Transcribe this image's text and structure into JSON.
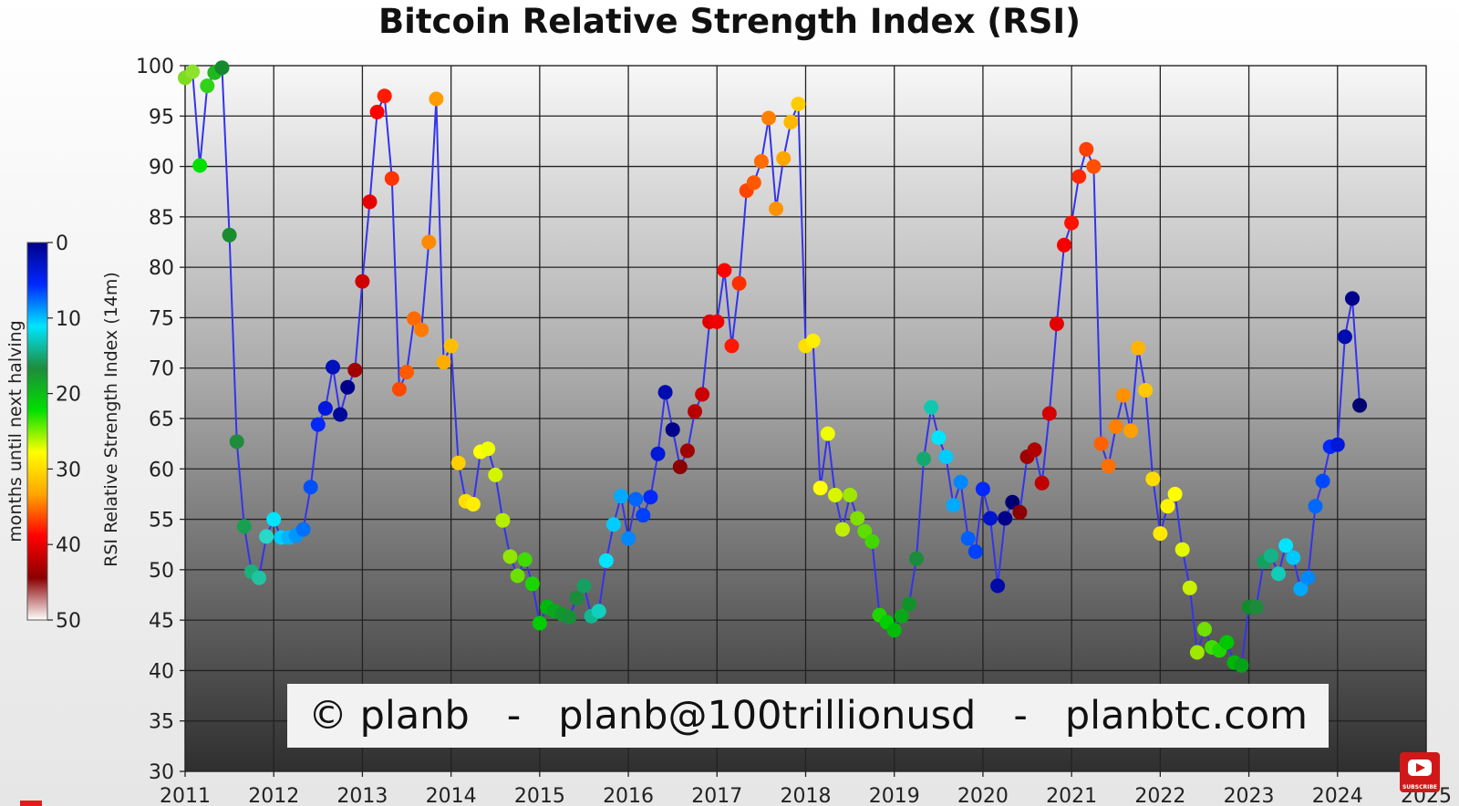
{
  "chart_data": {
    "type": "scatter",
    "title": "Bitcoin Relative Strength Index (RSI)",
    "ylabel": "RSI Relative Strength Index (14m)",
    "xlim": [
      2011,
      2025
    ],
    "ylim": [
      30,
      100
    ],
    "x_ticks": [
      "2011",
      "2012",
      "2013",
      "2014",
      "2015",
      "2016",
      "2017",
      "2018",
      "2019",
      "2020",
      "2021",
      "2022",
      "2023",
      "2024",
      "2025"
    ],
    "y_ticks": [
      "30",
      "35",
      "40",
      "45",
      "50",
      "55",
      "60",
      "65",
      "70",
      "75",
      "80",
      "85",
      "90",
      "95",
      "100"
    ],
    "grid": true,
    "colorbar": {
      "label": "months until next halving",
      "ticks": [
        "0",
        "10",
        "20",
        "30",
        "40",
        "50"
      ],
      "range": [
        0,
        50
      ],
      "colors": [
        "#00008b",
        "#0028ff",
        "#00e5ff",
        "#1e8c3c",
        "#00e000",
        "#ffff00",
        "#ffa500",
        "#ff0000",
        "#8b0000",
        "#ffffff"
      ]
    },
    "series": [
      {
        "line_color": "#3333ee",
        "points": [
          {
            "x": "2011-01",
            "y": 98.8,
            "color": "#7ddc1f"
          },
          {
            "x": "2011-02",
            "y": 99.4,
            "color": "#8ee22c"
          },
          {
            "x": "2011-03",
            "y": 90.1,
            "color": "#00e000"
          },
          {
            "x": "2011-04",
            "y": 98.0,
            "color": "#2fd418"
          },
          {
            "x": "2011-05",
            "y": 99.3,
            "color": "#1fb81f"
          },
          {
            "x": "2011-06",
            "y": 99.8,
            "color": "#138a2e"
          },
          {
            "x": "2011-07",
            "y": 83.2,
            "color": "#1a8c30"
          },
          {
            "x": "2011-08",
            "y": 62.7,
            "color": "#1e8c3c"
          },
          {
            "x": "2011-09",
            "y": 54.3,
            "color": "#17a050"
          },
          {
            "x": "2011-10",
            "y": 49.8,
            "color": "#1ab07a"
          },
          {
            "x": "2011-11",
            "y": 49.2,
            "color": "#20c4a0"
          },
          {
            "x": "2011-12",
            "y": 53.3,
            "color": "#28d8c8"
          },
          {
            "x": "2012-01",
            "y": 55.0,
            "color": "#00e5ff"
          },
          {
            "x": "2012-02",
            "y": 53.2,
            "color": "#00ccff"
          },
          {
            "x": "2012-03",
            "y": 53.2,
            "color": "#00b4ff"
          },
          {
            "x": "2012-04",
            "y": 53.4,
            "color": "#0096ff"
          },
          {
            "x": "2012-05",
            "y": 54.0,
            "color": "#0070ff"
          },
          {
            "x": "2012-06",
            "y": 58.2,
            "color": "#0050ff"
          },
          {
            "x": "2012-07",
            "y": 64.4,
            "color": "#0028ff"
          },
          {
            "x": "2012-08",
            "y": 66.0,
            "color": "#0018dd"
          },
          {
            "x": "2012-09",
            "y": 70.1,
            "color": "#0010bb"
          },
          {
            "x": "2012-10",
            "y": 65.4,
            "color": "#000a9a"
          },
          {
            "x": "2012-11",
            "y": 68.1,
            "color": "#00008b"
          },
          {
            "x": "2012-12",
            "y": 69.8,
            "color": "#a00000"
          },
          {
            "x": "2013-01",
            "y": 78.6,
            "color": "#d00000"
          },
          {
            "x": "2013-02",
            "y": 86.5,
            "color": "#e80000"
          },
          {
            "x": "2013-03",
            "y": 95.4,
            "color": "#ff0000"
          },
          {
            "x": "2013-04",
            "y": 97.0,
            "color": "#ff1a00"
          },
          {
            "x": "2013-05",
            "y": 88.8,
            "color": "#ff3300"
          },
          {
            "x": "2013-06",
            "y": 67.9,
            "color": "#ff4800"
          },
          {
            "x": "2013-07",
            "y": 69.6,
            "color": "#ff5a00"
          },
          {
            "x": "2013-08",
            "y": 74.9,
            "color": "#ff6a00"
          },
          {
            "x": "2013-09",
            "y": 73.8,
            "color": "#ff7a00"
          },
          {
            "x": "2013-10",
            "y": 82.5,
            "color": "#ff8a00"
          },
          {
            "x": "2013-11",
            "y": 96.7,
            "color": "#ff9c00"
          },
          {
            "x": "2013-12",
            "y": 70.6,
            "color": "#ffad00"
          },
          {
            "x": "2014-01",
            "y": 72.2,
            "color": "#ffbe00"
          },
          {
            "x": "2014-02",
            "y": 60.6,
            "color": "#ffcf00"
          },
          {
            "x": "2014-03",
            "y": 56.8,
            "color": "#ffdf00"
          },
          {
            "x": "2014-04",
            "y": 56.5,
            "color": "#ffee00"
          },
          {
            "x": "2014-05",
            "y": 61.7,
            "color": "#ffff00"
          },
          {
            "x": "2014-06",
            "y": 62.0,
            "color": "#eeff00"
          },
          {
            "x": "2014-07",
            "y": 59.4,
            "color": "#d4f500"
          },
          {
            "x": "2014-08",
            "y": 54.9,
            "color": "#b6ee00"
          },
          {
            "x": "2014-09",
            "y": 51.3,
            "color": "#90e600"
          },
          {
            "x": "2014-10",
            "y": 49.4,
            "color": "#6ce000"
          },
          {
            "x": "2014-11",
            "y": 51.0,
            "color": "#40dc00"
          },
          {
            "x": "2014-12",
            "y": 48.6,
            "color": "#1ad600"
          },
          {
            "x": "2015-01",
            "y": 44.7,
            "color": "#00cc00"
          },
          {
            "x": "2015-02",
            "y": 46.3,
            "color": "#00b810"
          },
          {
            "x": "2015-03",
            "y": 45.9,
            "color": "#08a820"
          },
          {
            "x": "2015-04",
            "y": 45.6,
            "color": "#10982c"
          },
          {
            "x": "2015-05",
            "y": 45.3,
            "color": "#169036"
          },
          {
            "x": "2015-06",
            "y": 47.2,
            "color": "#1a8c3c"
          },
          {
            "x": "2015-07",
            "y": 48.4,
            "color": "#14a060"
          },
          {
            "x": "2015-08",
            "y": 45.4,
            "color": "#10b890"
          },
          {
            "x": "2015-09",
            "y": 45.9,
            "color": "#10d0c0"
          },
          {
            "x": "2015-10",
            "y": 50.9,
            "color": "#00e5ff"
          },
          {
            "x": "2015-11",
            "y": 54.5,
            "color": "#00ccff"
          },
          {
            "x": "2015-12",
            "y": 57.3,
            "color": "#00aaff"
          },
          {
            "x": "2016-01",
            "y": 53.1,
            "color": "#0088ff"
          },
          {
            "x": "2016-02",
            "y": 57.0,
            "color": "#0066ff"
          },
          {
            "x": "2016-03",
            "y": 55.4,
            "color": "#0040ff"
          },
          {
            "x": "2016-04",
            "y": 57.2,
            "color": "#0028ff"
          },
          {
            "x": "2016-05",
            "y": 61.5,
            "color": "#0018d8"
          },
          {
            "x": "2016-06",
            "y": 67.6,
            "color": "#000cb0"
          },
          {
            "x": "2016-07",
            "y": 63.9,
            "color": "#00008b"
          },
          {
            "x": "2016-08",
            "y": 60.2,
            "color": "#8b0000"
          },
          {
            "x": "2016-09",
            "y": 61.8,
            "color": "#a00000"
          },
          {
            "x": "2016-10",
            "y": 65.7,
            "color": "#b80000"
          },
          {
            "x": "2016-11",
            "y": 67.4,
            "color": "#cc0000"
          },
          {
            "x": "2016-12",
            "y": 74.6,
            "color": "#e00000"
          },
          {
            "x": "2017-01",
            "y": 74.6,
            "color": "#f00000"
          },
          {
            "x": "2017-02",
            "y": 79.7,
            "color": "#ff0000"
          },
          {
            "x": "2017-03",
            "y": 72.2,
            "color": "#ff1800"
          },
          {
            "x": "2017-04",
            "y": 78.4,
            "color": "#ff2e00"
          },
          {
            "x": "2017-05",
            "y": 87.6,
            "color": "#ff4400"
          },
          {
            "x": "2017-06",
            "y": 88.4,
            "color": "#ff5800"
          },
          {
            "x": "2017-07",
            "y": 90.5,
            "color": "#ff6c00"
          },
          {
            "x": "2017-08",
            "y": 94.8,
            "color": "#ff8000"
          },
          {
            "x": "2017-09",
            "y": 85.8,
            "color": "#ff9200"
          },
          {
            "x": "2017-10",
            "y": 90.8,
            "color": "#ffa500"
          },
          {
            "x": "2017-11",
            "y": 94.4,
            "color": "#ffb800"
          },
          {
            "x": "2017-12",
            "y": 96.2,
            "color": "#ffcc00"
          },
          {
            "x": "2018-01",
            "y": 72.2,
            "color": "#ffde00"
          },
          {
            "x": "2018-02",
            "y": 72.7,
            "color": "#ffee00"
          },
          {
            "x": "2018-03",
            "y": 58.1,
            "color": "#ffff00"
          },
          {
            "x": "2018-04",
            "y": 63.5,
            "color": "#f0ff00"
          },
          {
            "x": "2018-05",
            "y": 57.4,
            "color": "#d8f500"
          },
          {
            "x": "2018-06",
            "y": 54.0,
            "color": "#c0ee00"
          },
          {
            "x": "2018-07",
            "y": 57.4,
            "color": "#a0e600"
          },
          {
            "x": "2018-08",
            "y": 55.1,
            "color": "#80e000"
          },
          {
            "x": "2018-09",
            "y": 53.8,
            "color": "#60dc00"
          },
          {
            "x": "2018-10",
            "y": 52.8,
            "color": "#40d800"
          },
          {
            "x": "2018-11",
            "y": 45.5,
            "color": "#20d400"
          },
          {
            "x": "2018-12",
            "y": 44.8,
            "color": "#00d000"
          },
          {
            "x": "2019-01",
            "y": 44.0,
            "color": "#00bc08"
          },
          {
            "x": "2019-02",
            "y": 45.4,
            "color": "#08a818"
          },
          {
            "x": "2019-03",
            "y": 46.6,
            "color": "#109428"
          },
          {
            "x": "2019-04",
            "y": 51.1,
            "color": "#1a8c3c"
          },
          {
            "x": "2019-05",
            "y": 61.0,
            "color": "#14a870"
          },
          {
            "x": "2019-06",
            "y": 66.1,
            "color": "#10c8b0"
          },
          {
            "x": "2019-07",
            "y": 63.1,
            "color": "#00e5ff"
          },
          {
            "x": "2019-08",
            "y": 61.2,
            "color": "#00ccff"
          },
          {
            "x": "2019-09",
            "y": 56.4,
            "color": "#00aaff"
          },
          {
            "x": "2019-10",
            "y": 58.7,
            "color": "#0088ff"
          },
          {
            "x": "2019-11",
            "y": 53.1,
            "color": "#0060ff"
          },
          {
            "x": "2019-12",
            "y": 51.8,
            "color": "#0040ff"
          },
          {
            "x": "2020-01",
            "y": 58.0,
            "color": "#0028ff"
          },
          {
            "x": "2020-02",
            "y": 55.1,
            "color": "#0014cc"
          },
          {
            "x": "2020-03",
            "y": 48.4,
            "color": "#000aa8"
          },
          {
            "x": "2020-04",
            "y": 55.1,
            "color": "#00008b"
          },
          {
            "x": "2020-05",
            "y": 56.7,
            "color": "#000070"
          },
          {
            "x": "2020-06",
            "y": 55.7,
            "color": "#8b0000"
          },
          {
            "x": "2020-07",
            "y": 61.2,
            "color": "#a00000"
          },
          {
            "x": "2020-08",
            "y": 61.9,
            "color": "#b00000"
          },
          {
            "x": "2020-09",
            "y": 58.6,
            "color": "#c00000"
          },
          {
            "x": "2020-10",
            "y": 65.5,
            "color": "#d40000"
          },
          {
            "x": "2020-11",
            "y": 74.4,
            "color": "#e40000"
          },
          {
            "x": "2020-12",
            "y": 82.2,
            "color": "#f40000"
          },
          {
            "x": "2021-01",
            "y": 84.4,
            "color": "#ff1000"
          },
          {
            "x": "2021-02",
            "y": 89.0,
            "color": "#ff2800"
          },
          {
            "x": "2021-03",
            "y": 91.7,
            "color": "#ff4000"
          },
          {
            "x": "2021-04",
            "y": 90.0,
            "color": "#ff5000"
          },
          {
            "x": "2021-05",
            "y": 62.5,
            "color": "#ff6000"
          },
          {
            "x": "2021-06",
            "y": 60.3,
            "color": "#ff7000"
          },
          {
            "x": "2021-07",
            "y": 64.2,
            "color": "#ff8000"
          },
          {
            "x": "2021-08",
            "y": 67.3,
            "color": "#ff9000"
          },
          {
            "x": "2021-09",
            "y": 63.8,
            "color": "#ffa000"
          },
          {
            "x": "2021-10",
            "y": 72.0,
            "color": "#ffb400"
          },
          {
            "x": "2021-11",
            "y": 67.8,
            "color": "#ffc800"
          },
          {
            "x": "2021-12",
            "y": 59.0,
            "color": "#ffdc00"
          },
          {
            "x": "2022-01",
            "y": 53.6,
            "color": "#ffea00"
          },
          {
            "x": "2022-02",
            "y": 56.3,
            "color": "#fff400"
          },
          {
            "x": "2022-03",
            "y": 57.5,
            "color": "#ffff00"
          },
          {
            "x": "2022-04",
            "y": 52.0,
            "color": "#e4f800"
          },
          {
            "x": "2022-05",
            "y": 48.2,
            "color": "#c8f000"
          },
          {
            "x": "2022-06",
            "y": 41.8,
            "color": "#a0e800"
          },
          {
            "x": "2022-07",
            "y": 44.1,
            "color": "#70e000"
          },
          {
            "x": "2022-08",
            "y": 42.3,
            "color": "#40dc00"
          },
          {
            "x": "2022-09",
            "y": 42.0,
            "color": "#20d400"
          },
          {
            "x": "2022-10",
            "y": 42.8,
            "color": "#00c800"
          },
          {
            "x": "2022-11",
            "y": 40.8,
            "color": "#00b408"
          },
          {
            "x": "2022-12",
            "y": 40.5,
            "color": "#08a018"
          },
          {
            "x": "2023-01",
            "y": 46.3,
            "color": "#108c28"
          },
          {
            "x": "2023-02",
            "y": 46.3,
            "color": "#1a8c3c"
          },
          {
            "x": "2023-03",
            "y": 50.8,
            "color": "#16a060"
          },
          {
            "x": "2023-04",
            "y": 51.4,
            "color": "#14b488"
          },
          {
            "x": "2023-05",
            "y": 49.6,
            "color": "#10ccb8"
          },
          {
            "x": "2023-06",
            "y": 52.4,
            "color": "#00e5ff"
          },
          {
            "x": "2023-07",
            "y": 51.2,
            "color": "#00c8ff"
          },
          {
            "x": "2023-08",
            "y": 48.1,
            "color": "#00a8ff"
          },
          {
            "x": "2023-09",
            "y": 49.2,
            "color": "#0088ff"
          },
          {
            "x": "2023-10",
            "y": 56.3,
            "color": "#0068ff"
          },
          {
            "x": "2023-11",
            "y": 58.8,
            "color": "#0048ff"
          },
          {
            "x": "2023-12",
            "y": 62.2,
            "color": "#0028ff"
          },
          {
            "x": "2024-01",
            "y": 62.4,
            "color": "#0018d8"
          },
          {
            "x": "2024-02",
            "y": 73.1,
            "color": "#000cb0"
          },
          {
            "x": "2024-03",
            "y": 76.9,
            "color": "#00008b"
          },
          {
            "x": "2024-04",
            "y": 66.3,
            "color": "#000070"
          }
        ]
      }
    ]
  },
  "watermark": {
    "text": "© planb   -   planb@100trillionusd   -   planbtc.com"
  },
  "youtube": {
    "label": "SUBSCRIBE"
  }
}
